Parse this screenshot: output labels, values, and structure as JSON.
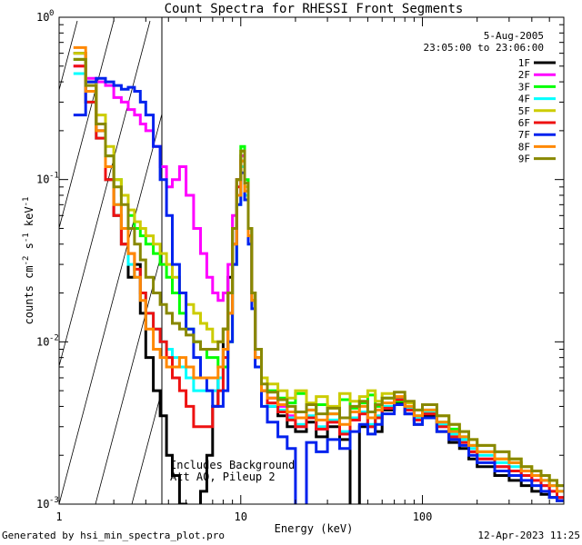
{
  "chart_data": {
    "type": "line",
    "title": "Count Spectra for RHESSI Front Segments",
    "xlabel": "Energy (keV)",
    "ylabel": "counts cm-2 s-1 keV-1",
    "xscale": "log",
    "yscale": "log",
    "xlim": [
      1,
      600
    ],
    "ylim": [
      0.001,
      1
    ],
    "x_ticks": [
      {
        "value": 1,
        "label": "1"
      },
      {
        "value": 10,
        "label": "10"
      },
      {
        "value": 100,
        "label": "100"
      }
    ],
    "y_ticks": [
      {
        "value": 0.001,
        "mant": "10",
        "exp": "-3"
      },
      {
        "value": 0.01,
        "mant": "10",
        "exp": "-2"
      },
      {
        "value": 0.1,
        "mant": "10",
        "exp": "-1"
      },
      {
        "value": 1,
        "mant": "10",
        "exp": "0"
      }
    ],
    "legend": {
      "position": "top-right",
      "date": "5-Aug-2005",
      "time_range": "23:05:00 to 23:06:00"
    },
    "annotations": [
      "Includes Background",
      "Att A0, Pileup 2"
    ],
    "excluded_region": {
      "from": 1,
      "to": 3
    },
    "energy_bins": [
      1.2,
      1.4,
      1.6,
      1.8,
      2.0,
      2.2,
      2.4,
      2.6,
      2.8,
      3.0,
      3.3,
      3.6,
      3.9,
      4.2,
      4.6,
      5.0,
      5.5,
      6.0,
      6.5,
      7.0,
      7.5,
      8.0,
      8.5,
      9.0,
      9.5,
      10.0,
      10.5,
      11.0,
      11.5,
      12.0,
      13.0,
      14.0,
      16.0,
      18.0,
      20.0,
      23.0,
      26.0,
      30.0,
      35.0,
      40.0,
      45.0,
      50.0,
      55.0,
      60.0,
      70.0,
      80.0,
      90.0,
      100.0,
      120.0,
      140.0,
      160.0,
      180.0,
      200.0,
      250.0,
      300.0,
      350.0,
      400.0,
      450.0,
      500.0,
      550.0,
      600.0
    ],
    "series": [
      {
        "name": "1F",
        "color": "#000000",
        "values": [
          0.6,
          0.4,
          0.2,
          0.1,
          0.06,
          0.04,
          0.025,
          0.03,
          0.015,
          0.008,
          0.005,
          0.0035,
          0.002,
          0.0015,
          0.001,
          0.0008,
          0.0009,
          0.0012,
          0.002,
          0.004,
          0.006,
          0.012,
          0.025,
          0.05,
          0.1,
          0.14,
          0.09,
          0.05,
          0.02,
          0.009,
          0.005,
          0.004,
          0.0035,
          0.003,
          0.0028,
          0.0032,
          0.0026,
          0.003,
          0.0025,
          0.0009,
          0.003,
          0.0034,
          0.0028,
          0.0038,
          0.0042,
          0.0036,
          0.0031,
          0.0035,
          0.0028,
          0.0024,
          0.0022,
          0.0019,
          0.0017,
          0.0015,
          0.0014,
          0.0013,
          0.0012,
          0.00115,
          0.0011,
          0.00105
        ]
      },
      {
        "name": "2F",
        "color": "#ff00ff",
        "values": [
          0.5,
          0.42,
          0.4,
          0.38,
          0.32,
          0.3,
          0.27,
          0.25,
          0.22,
          0.2,
          0.16,
          0.12,
          0.09,
          0.1,
          0.12,
          0.08,
          0.05,
          0.035,
          0.025,
          0.02,
          0.018,
          0.02,
          0.03,
          0.06,
          0.1,
          0.14,
          0.09,
          0.05,
          0.02,
          0.009,
          0.005,
          0.0045,
          0.004,
          0.0035,
          0.003,
          0.0034,
          0.0029,
          0.0032,
          0.0027,
          0.0033,
          0.0036,
          0.003,
          0.0034,
          0.0039,
          0.0044,
          0.0038,
          0.0033,
          0.0036,
          0.003,
          0.0026,
          0.0024,
          0.0021,
          0.0019,
          0.0017,
          0.0016,
          0.0015,
          0.0014,
          0.0013,
          0.0012,
          0.0011
        ]
      },
      {
        "name": "3F",
        "color": "#00ff00",
        "values": [
          0.55,
          0.35,
          0.22,
          0.14,
          0.1,
          0.08,
          0.06,
          0.05,
          0.045,
          0.04,
          0.035,
          0.03,
          0.025,
          0.02,
          0.015,
          0.012,
          0.01,
          0.009,
          0.008,
          0.008,
          0.007,
          0.007,
          0.01,
          0.03,
          0.08,
          0.16,
          0.1,
          0.05,
          0.02,
          0.008,
          0.006,
          0.005,
          0.0045,
          0.0042,
          0.0048,
          0.0038,
          0.0041,
          0.0036,
          0.0044,
          0.0039,
          0.0042,
          0.0047,
          0.004,
          0.0045,
          0.0043,
          0.0039,
          0.0035,
          0.0038,
          0.0032,
          0.0029,
          0.0026,
          0.0023,
          0.0021,
          0.0019,
          0.0018,
          0.0016,
          0.0015,
          0.0014,
          0.0013,
          0.0012
        ]
      },
      {
        "name": "4F",
        "color": "#00ffff",
        "values": [
          0.45,
          0.3,
          0.18,
          0.12,
          0.07,
          0.05,
          0.03,
          0.025,
          0.02,
          0.015,
          0.012,
          0.01,
          0.009,
          0.008,
          0.007,
          0.006,
          0.005,
          0.005,
          0.005,
          0.005,
          0.006,
          0.008,
          0.015,
          0.03,
          0.07,
          0.12,
          0.08,
          0.04,
          0.018,
          0.008,
          0.005,
          0.004,
          0.0038,
          0.0034,
          0.0031,
          0.0035,
          0.003,
          0.0033,
          0.0028,
          0.0034,
          0.0037,
          0.0031,
          0.0035,
          0.004,
          0.0045,
          0.0039,
          0.0034,
          0.0037,
          0.0031,
          0.0027,
          0.0025,
          0.0022,
          0.002,
          0.0018,
          0.0017,
          0.0016,
          0.0015,
          0.0014,
          0.0013,
          0.0012
        ]
      },
      {
        "name": "5F",
        "color": "#cccc00",
        "values": [
          0.6,
          0.4,
          0.25,
          0.16,
          0.1,
          0.08,
          0.065,
          0.055,
          0.05,
          0.045,
          0.04,
          0.035,
          0.03,
          0.025,
          0.02,
          0.017,
          0.015,
          0.013,
          0.012,
          0.01,
          0.01,
          0.012,
          0.02,
          0.05,
          0.1,
          0.15,
          0.09,
          0.05,
          0.02,
          0.009,
          0.006,
          0.0055,
          0.005,
          0.0045,
          0.005,
          0.0042,
          0.0046,
          0.004,
          0.0048,
          0.0043,
          0.0046,
          0.005,
          0.0043,
          0.0048,
          0.0046,
          0.0042,
          0.0038,
          0.0041,
          0.0035,
          0.0031,
          0.0028,
          0.0025,
          0.0023,
          0.0021,
          0.0019,
          0.0017,
          0.0016,
          0.0015,
          0.0014,
          0.0013
        ]
      },
      {
        "name": "6F",
        "color": "#ee1111",
        "values": [
          0.5,
          0.3,
          0.18,
          0.1,
          0.06,
          0.04,
          0.035,
          0.028,
          0.02,
          0.015,
          0.012,
          0.01,
          0.008,
          0.006,
          0.005,
          0.004,
          0.003,
          0.003,
          0.003,
          0.004,
          0.005,
          0.008,
          0.015,
          0.04,
          0.09,
          0.13,
          0.085,
          0.045,
          0.018,
          0.008,
          0.005,
          0.0042,
          0.0037,
          0.0033,
          0.003,
          0.0034,
          0.0029,
          0.0032,
          0.0027,
          0.0033,
          0.0036,
          0.003,
          0.0034,
          0.0039,
          0.0044,
          0.0038,
          0.0033,
          0.0036,
          0.003,
          0.0026,
          0.0024,
          0.0021,
          0.0019,
          0.0017,
          0.0016,
          0.0015,
          0.0014,
          0.0013,
          0.0012,
          0.0011
        ]
      },
      {
        "name": "7F",
        "color": "#0022ee",
        "values": [
          0.25,
          0.4,
          0.42,
          0.4,
          0.38,
          0.36,
          0.37,
          0.35,
          0.3,
          0.25,
          0.16,
          0.1,
          0.06,
          0.03,
          0.02,
          0.012,
          0.008,
          0.006,
          0.005,
          0.004,
          0.004,
          0.005,
          0.01,
          0.03,
          0.07,
          0.11,
          0.075,
          0.04,
          0.016,
          0.007,
          0.004,
          0.0032,
          0.0026,
          0.0022,
          0.0008,
          0.0024,
          0.0021,
          0.0025,
          0.0022,
          0.0028,
          0.0031,
          0.0027,
          0.0031,
          0.0036,
          0.0041,
          0.0036,
          0.0031,
          0.0034,
          0.0028,
          0.0025,
          0.0023,
          0.002,
          0.0018,
          0.0016,
          0.0015,
          0.0014,
          0.0013,
          0.0012,
          0.0011,
          0.00105
        ]
      },
      {
        "name": "8F",
        "color": "#ff8800",
        "values": [
          0.65,
          0.35,
          0.2,
          0.12,
          0.07,
          0.05,
          0.035,
          0.025,
          0.018,
          0.012,
          0.009,
          0.008,
          0.007,
          0.007,
          0.008,
          0.007,
          0.006,
          0.006,
          0.006,
          0.006,
          0.007,
          0.009,
          0.015,
          0.04,
          0.08,
          0.13,
          0.085,
          0.045,
          0.018,
          0.008,
          0.005,
          0.0045,
          0.0041,
          0.0037,
          0.0034,
          0.0038,
          0.0033,
          0.0036,
          0.0031,
          0.0037,
          0.004,
          0.0034,
          0.0038,
          0.0042,
          0.0046,
          0.004,
          0.0035,
          0.0038,
          0.0032,
          0.0028,
          0.0026,
          0.0023,
          0.0021,
          0.0019,
          0.0018,
          0.0016,
          0.0015,
          0.0014,
          0.0013,
          0.0012
        ]
      },
      {
        "name": "9F",
        "color": "#888800",
        "values": [
          0.55,
          0.38,
          0.22,
          0.14,
          0.09,
          0.07,
          0.05,
          0.04,
          0.032,
          0.025,
          0.02,
          0.017,
          0.015,
          0.013,
          0.012,
          0.011,
          0.01,
          0.009,
          0.009,
          0.009,
          0.01,
          0.012,
          0.02,
          0.05,
          0.1,
          0.15,
          0.095,
          0.05,
          0.02,
          0.009,
          0.0055,
          0.0049,
          0.0044,
          0.004,
          0.0037,
          0.0041,
          0.0036,
          0.0039,
          0.0034,
          0.004,
          0.0043,
          0.0037,
          0.0041,
          0.0045,
          0.0049,
          0.0043,
          0.0038,
          0.0041,
          0.0035,
          0.0031,
          0.0028,
          0.0025,
          0.0023,
          0.0021,
          0.0019,
          0.0017,
          0.0016,
          0.0015,
          0.0014,
          0.0013
        ]
      }
    ]
  },
  "footer": {
    "generated_by": "Generated by hsi_min_spectra_plot.pro",
    "timestamp": "12-Apr-2023 11:25"
  }
}
